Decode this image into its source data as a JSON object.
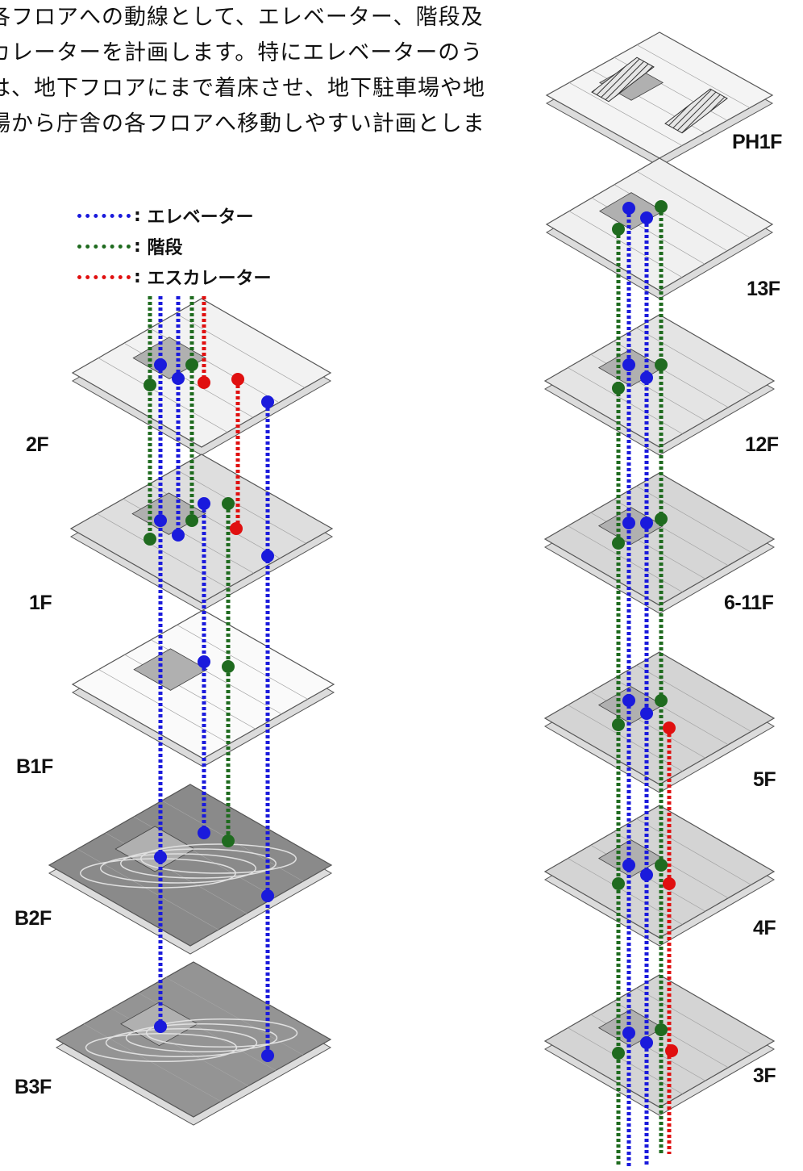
{
  "intro_lines": [
    "各フロアへの動線として、エレベーター、階段及",
    "カレーターを計画します。特にエレベーターのう",
    "は、地下フロアにまで着床させ、地下駐車場や地",
    "場から庁舎の各フロアへ移動しやすい計画としま"
  ],
  "legend": [
    {
      "key": "elevator",
      "sep": ":",
      "label": "エレベーター",
      "color": "#1a1adc"
    },
    {
      "key": "stairs",
      "sep": ":",
      "label": "階段",
      "color": "#1f6b1f"
    },
    {
      "key": "escalator",
      "sep": ":",
      "label": "エスカレーター",
      "color": "#e01010"
    }
  ],
  "floors_left": [
    "2F",
    "1F",
    "B1F",
    "B2F",
    "B3F"
  ],
  "floors_right": [
    "PH1F",
    "13F",
    "12F",
    "6-11F",
    "5F",
    "4F",
    "3F"
  ],
  "colors": {
    "elevator": "#1a1adc",
    "stairs": "#1f6b1f",
    "escalator": "#e01010",
    "plan_light": "#f2f2f2",
    "plan_mid": "#c8c8c8",
    "plan_dark": "#8a8a8a",
    "outline": "#555555"
  }
}
